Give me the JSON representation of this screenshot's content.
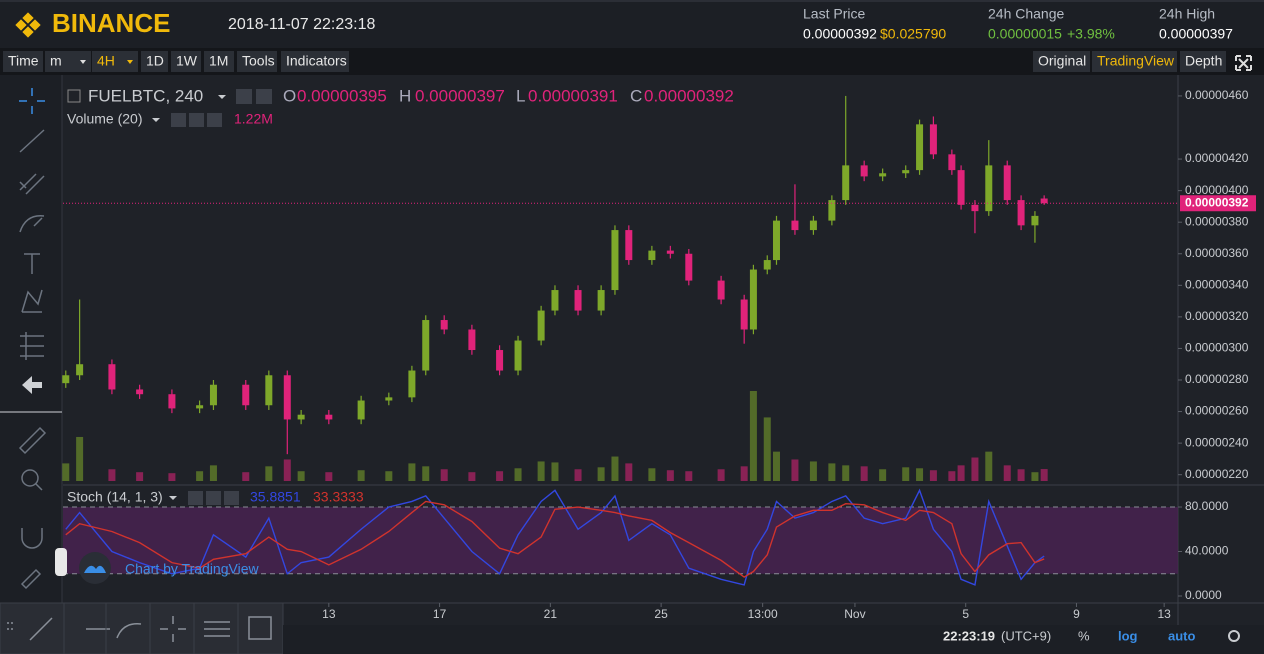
{
  "header": {
    "logo": "BINANCE",
    "datetime": "2018-11-07 22:23:18",
    "stats": [
      {
        "label": "Last Price",
        "value": "0.00000392",
        "extra": "$0.025790"
      },
      {
        "label": "24h Change",
        "value": "0.00000015",
        "extra": "+3.98%"
      },
      {
        "label": "24h High",
        "value": "0.00000397"
      }
    ]
  },
  "toolbar": {
    "left": [
      "Time",
      "m",
      "4H",
      "1D",
      "1W",
      "1M",
      "Tools",
      "Indicators"
    ],
    "right": [
      "Original",
      "TradingView",
      "Depth"
    ]
  },
  "chart_data": {
    "type": "candlestick",
    "symbol": "FUELBTC, 240",
    "ohlc_labels": [
      "O",
      "H",
      "L",
      "C"
    ],
    "up_color": "#7ea82a",
    "down_color": "#e0237a",
    "x": [
      0,
      3,
      10,
      16,
      23,
      29,
      32,
      39,
      44,
      48,
      51,
      57,
      64,
      70,
      75,
      78,
      82,
      88,
      94,
      98,
      103,
      106,
      111,
      116,
      119,
      122,
      127,
      131,
      135,
      142,
      147,
      149,
      152,
      154,
      158,
      162,
      166,
      169,
      173,
      177,
      182,
      185,
      188,
      192,
      194,
      197,
      200,
      204,
      207,
      210,
      212
    ],
    "open": [
      2.78e-06,
      2.83e-06,
      2.9e-06,
      2.74e-06,
      2.71e-06,
      2.62e-06,
      2.64e-06,
      2.77e-06,
      2.64e-06,
      2.83e-06,
      2.55e-06,
      2.58e-06,
      2.55e-06,
      2.67e-06,
      2.69e-06,
      2.86e-06,
      3.18e-06,
      3.12e-06,
      2.99e-06,
      2.86e-06,
      3.05e-06,
      3.24e-06,
      3.37e-06,
      3.24e-06,
      3.37e-06,
      3.75e-06,
      3.56e-06,
      3.62e-06,
      3.6e-06,
      3.43e-06,
      3.31e-06,
      3.12e-06,
      3.5e-06,
      3.56e-06,
      3.81e-06,
      3.75e-06,
      3.81e-06,
      3.94e-06,
      4.16e-06,
      4.09e-06,
      4.11e-06,
      4.13e-06,
      4.42e-06,
      4.23e-06,
      4.13e-06,
      3.91e-06,
      3.87e-06,
      4.16e-06,
      3.94e-06,
      3.78e-06,
      3.95e-06
    ],
    "high": [
      2.86e-06,
      3.31e-06,
      2.93e-06,
      2.77e-06,
      2.74e-06,
      2.67e-06,
      2.8e-06,
      2.8e-06,
      2.86e-06,
      2.86e-06,
      2.61e-06,
      2.61e-06,
      2.7e-06,
      2.72e-06,
      2.89e-06,
      3.21e-06,
      3.21e-06,
      3.15e-06,
      3.02e-06,
      3.08e-06,
      3.27e-06,
      3.4e-06,
      3.4e-06,
      3.4e-06,
      3.78e-06,
      3.78e-06,
      3.65e-06,
      3.65e-06,
      3.63e-06,
      3.46e-06,
      3.34e-06,
      3.53e-06,
      3.59e-06,
      3.84e-06,
      4.04e-06,
      3.84e-06,
      3.97e-06,
      4.6e-06,
      4.19e-06,
      4.14e-06,
      4.16e-06,
      4.45e-06,
      4.47e-06,
      4.26e-06,
      4.16e-06,
      3.94e-06,
      4.32e-06,
      4.19e-06,
      3.97e-06,
      3.87e-06,
      3.97e-06
    ],
    "low": [
      2.75e-06,
      2.8e-06,
      2.71e-06,
      2.68e-06,
      2.59e-06,
      2.59e-06,
      2.61e-06,
      2.61e-06,
      2.61e-06,
      2.33e-06,
      2.52e-06,
      2.52e-06,
      2.52e-06,
      2.64e-06,
      2.66e-06,
      2.83e-06,
      3.09e-06,
      2.96e-06,
      2.83e-06,
      2.83e-06,
      3.02e-06,
      3.21e-06,
      3.21e-06,
      3.21e-06,
      3.34e-06,
      3.53e-06,
      3.53e-06,
      3.57e-06,
      3.4e-06,
      3.28e-06,
      3.03e-06,
      3.09e-06,
      3.47e-06,
      3.53e-06,
      3.72e-06,
      3.72e-06,
      3.78e-06,
      3.91e-06,
      4.06e-06,
      4.06e-06,
      4.08e-06,
      4.1e-06,
      4.2e-06,
      4.1e-06,
      3.88e-06,
      3.73e-06,
      3.84e-06,
      3.91e-06,
      3.75e-06,
      3.67e-06,
      3.91e-06
    ],
    "close": [
      2.83e-06,
      2.9e-06,
      2.74e-06,
      2.71e-06,
      2.62e-06,
      2.64e-06,
      2.77e-06,
      2.64e-06,
      2.83e-06,
      2.55e-06,
      2.58e-06,
      2.55e-06,
      2.67e-06,
      2.69e-06,
      2.86e-06,
      3.18e-06,
      3.12e-06,
      2.99e-06,
      2.86e-06,
      3.05e-06,
      3.24e-06,
      3.37e-06,
      3.24e-06,
      3.37e-06,
      3.75e-06,
      3.56e-06,
      3.62e-06,
      3.6e-06,
      3.43e-06,
      3.31e-06,
      3.12e-06,
      3.5e-06,
      3.56e-06,
      3.81e-06,
      3.75e-06,
      3.81e-06,
      3.94e-06,
      4.16e-06,
      4.09e-06,
      4.11e-06,
      4.13e-06,
      4.42e-06,
      4.23e-06,
      4.13e-06,
      3.91e-06,
      3.87e-06,
      4.16e-06,
      3.94e-06,
      3.78e-06,
      3.84e-06,
      3.92e-06
    ],
    "xlim": [
      -0.6,
      241
    ],
    "ylim": [
      2.16e-06,
      4.72e-06
    ],
    "yticks": [
      {
        "value": 2.2e-06,
        "label": "0.00000220"
      },
      {
        "value": 2.4e-06,
        "label": "0.00000240"
      },
      {
        "value": 2.6e-06,
        "label": "0.00000260"
      },
      {
        "value": 2.8e-06,
        "label": "0.00000280"
      },
      {
        "value": 3e-06,
        "label": "0.00000300"
      },
      {
        "value": 3.2e-06,
        "label": "0.00000320"
      },
      {
        "value": 3.4e-06,
        "label": "0.00000340"
      },
      {
        "value": 3.6e-06,
        "label": "0.00000360"
      },
      {
        "value": 3.8e-06,
        "label": "0.00000380"
      },
      {
        "value": 4e-06,
        "label": "0.00000400"
      },
      {
        "value": 4.2e-06,
        "label": "0.00000420"
      },
      {
        "value": 4.6e-06,
        "label": "0.00000460"
      }
    ],
    "xticks": [
      {
        "value": 57,
        "label": "13"
      },
      {
        "value": 81,
        "label": "17"
      },
      {
        "value": 105,
        "label": "21"
      },
      {
        "value": 129,
        "label": "25"
      },
      {
        "value": 151,
        "label": "13:00"
      },
      {
        "value": 171,
        "label": "Nov"
      },
      {
        "value": 195,
        "label": "5"
      },
      {
        "value": 219,
        "label": "9"
      },
      {
        "value": 238,
        "label": "13"
      }
    ],
    "volume": {
      "name": "Volume (20)",
      "values": [
        1800000,
        4500000,
        1200000,
        900000,
        800000,
        1000000,
        1600000,
        900000,
        1500000,
        2200000,
        1000000,
        900000,
        1100000,
        1000000,
        1800000,
        1500000,
        1200000,
        900000,
        1000000,
        1300000,
        2000000,
        1900000,
        1200000,
        1400000,
        2500000,
        1800000,
        1300000,
        1100000,
        1000000,
        1200000,
        1500000,
        9200000,
        6500000,
        3000000,
        2200000,
        2000000,
        1800000,
        1600000,
        1500000,
        1200000,
        1400000,
        1300000,
        1100000,
        1000000,
        1600000,
        2400000,
        3000000,
        1600000,
        1200000,
        900000,
        1220000
      ],
      "value_labels": [
        null,
        null,
        null,
        null,
        null,
        null,
        null,
        null,
        null,
        null,
        null,
        null,
        null,
        null,
        null,
        null,
        null,
        null,
        null,
        null,
        null,
        null,
        null,
        null,
        null,
        null,
        null,
        null,
        null,
        null,
        null,
        null,
        null,
        null,
        null,
        null,
        null,
        null,
        null,
        null,
        null,
        null,
        null,
        null,
        null,
        null,
        null,
        null,
        null,
        null,
        "1.22M"
      ]
    },
    "stoch": {
      "name": "Stoch (14, 1, 3)",
      "ylim": [
        -5.4,
        98
      ],
      "bands": [
        20,
        80
      ],
      "band_color": "#4a2352",
      "yticks": [
        {
          "value": 0,
          "label": "0.0000"
        },
        {
          "value": 40,
          "label": "40.0000"
        },
        {
          "value": 80,
          "label": "80.0000"
        }
      ],
      "series": [
        {
          "color": "#3347e0",
          "values": [
            60,
            75,
            40,
            30,
            20,
            25,
            55,
            35,
            70,
            20,
            30,
            35,
            60,
            80,
            85,
            90,
            70,
            40,
            20,
            55,
            85,
            95,
            60,
            75,
            90,
            50,
            65,
            55,
            25,
            15,
            10,
            40,
            60,
            85,
            70,
            75,
            85,
            90,
            70,
            65,
            70,
            95,
            60,
            40,
            15,
            10,
            85,
            45,
            15,
            30,
            35.8851
          ]
        },
        {
          "color": "#d0332d",
          "values": [
            55,
            65,
            58,
            48,
            30,
            25,
            33,
            38,
            53,
            42,
            40,
            28,
            42,
            58,
            75,
            85,
            82,
            67,
            43,
            38,
            53,
            78,
            80,
            77,
            75,
            72,
            68,
            57,
            48,
            32,
            17,
            22,
            37,
            62,
            72,
            77,
            77,
            83,
            82,
            75,
            68,
            77,
            75,
            65,
            38,
            22,
            37,
            47,
            48,
            30,
            33.3333
          ]
        }
      ]
    }
  },
  "watermark": "Chart by TradingView",
  "footer": {
    "time": "22:23:19",
    "timezone": "(UTC+9)",
    "buttons": [
      "%",
      "log",
      "auto"
    ]
  }
}
